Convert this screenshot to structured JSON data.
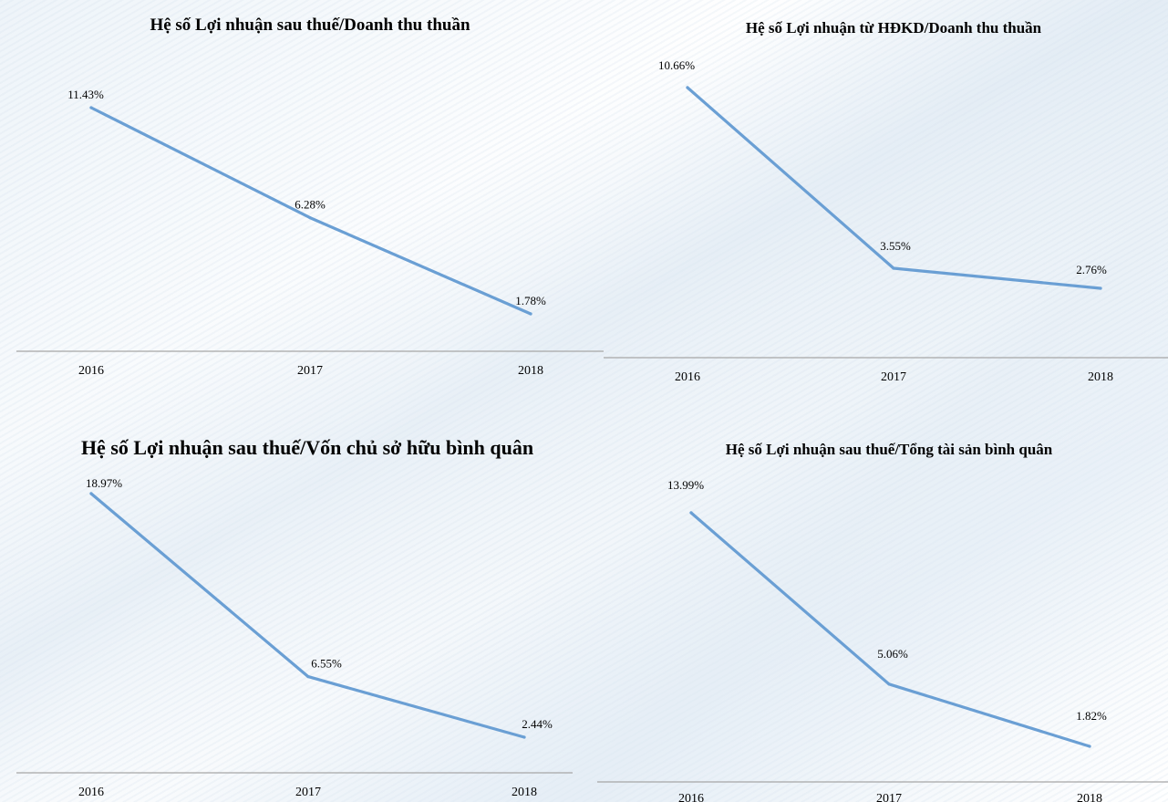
{
  "chart_data": [
    {
      "type": "line",
      "title": "Hệ số Lợi nhuận sau thuế/Doanh thu thuần",
      "categories": [
        "2016",
        "2017",
        "2018"
      ],
      "values": [
        11.43,
        6.28,
        1.78
      ],
      "data_labels": [
        "11.43%",
        "6.28%",
        "1.78%"
      ],
      "unit": "%",
      "grid": false,
      "legend": "none",
      "color": "#6a9fd4"
    },
    {
      "type": "line",
      "title": "Hệ số Lợi nhuận từ HĐKD/Doanh thu thuần",
      "categories": [
        "2016",
        "2017",
        "2018"
      ],
      "values": [
        10.66,
        3.55,
        2.76
      ],
      "data_labels": [
        "10.66%",
        "3.55%",
        "2.76%"
      ],
      "unit": "%",
      "grid": false,
      "legend": "none",
      "color": "#6a9fd4"
    },
    {
      "type": "line",
      "title": "Hệ số Lợi nhuận sau thuế/Vốn chủ sở hữu bình quân",
      "categories": [
        "2016",
        "2017",
        "2018"
      ],
      "values": [
        18.97,
        6.55,
        2.44
      ],
      "data_labels": [
        "18.97%",
        "6.55%",
        "2.44%"
      ],
      "unit": "%",
      "grid": false,
      "legend": "none",
      "color": "#6a9fd4"
    },
    {
      "type": "line",
      "title": "Hệ số Lợi nhuận sau thuế/Tổng tài sản bình quân",
      "categories": [
        "2016",
        "2017",
        "2018"
      ],
      "values": [
        13.99,
        5.06,
        1.82
      ],
      "data_labels": [
        "13.99%",
        "5.06%",
        "1.82%"
      ],
      "unit": "%",
      "grid": false,
      "legend": "none",
      "color": "#6a9fd4"
    }
  ]
}
